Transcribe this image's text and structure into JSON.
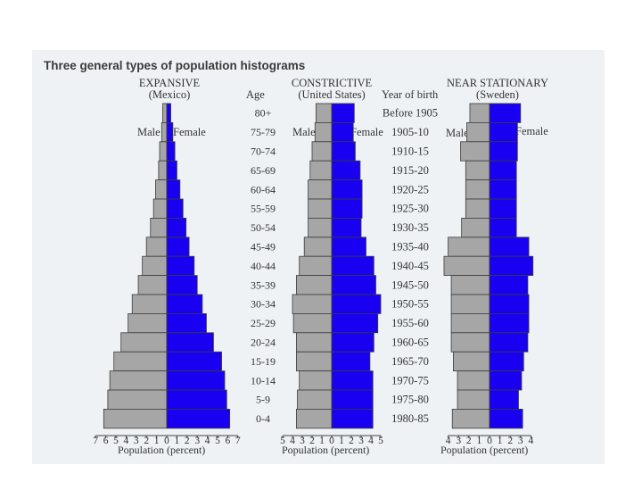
{
  "chart_data": {
    "type": "bar",
    "orientation": "horizontal-population-pyramid",
    "title": "Three general types of population histograms",
    "row_labels_header": "Age",
    "year_labels_header": "Year of birth",
    "age_groups": [
      "80+",
      "75-79",
      "70-74",
      "65-69",
      "60-64",
      "55-59",
      "50-54",
      "45-49",
      "40-44",
      "35-39",
      "30-34",
      "25-29",
      "20-24",
      "15-19",
      "10-14",
      "5-9",
      "0-4"
    ],
    "year_of_birth": [
      "Before 1905",
      "1905-10",
      "1910-15",
      "1915-20",
      "1920-25",
      "1925-30",
      "1930-35",
      "1935-40",
      "1940-45",
      "1945-50",
      "1950-55",
      "1955-60",
      "1960-65",
      "1965-70",
      "1970-75",
      "1975-80",
      "1980-85"
    ],
    "charts": [
      {
        "name": "EXPANSIVE",
        "subtitle": "(Mexico)",
        "male_label": "Male",
        "female_label": "Female",
        "xlabel": "Population (percent)",
        "xlim": 7,
        "ticks": [
          "7",
          "6",
          "5",
          "4",
          "3",
          "2",
          "1",
          "0",
          "1",
          "2",
          "3",
          "4",
          "5",
          "6",
          "7"
        ],
        "male": [
          0.4,
          0.5,
          0.7,
          0.8,
          1.1,
          1.3,
          1.6,
          2.0,
          2.4,
          2.8,
          3.4,
          3.8,
          4.5,
          5.2,
          5.6,
          5.8,
          6.2
        ],
        "female": [
          0.4,
          0.6,
          0.8,
          1.0,
          1.3,
          1.6,
          1.9,
          2.2,
          2.7,
          3.0,
          3.5,
          3.9,
          4.6,
          5.4,
          5.7,
          5.9,
          6.2
        ]
      },
      {
        "name": "CONSTRICTIVE",
        "subtitle": "(United States)",
        "male_label": "Male",
        "female_label": "Female",
        "xlabel": "Population (percent)",
        "xlim": 5,
        "ticks": [
          "5",
          "4",
          "3",
          "2",
          "1",
          "0",
          "1",
          "2",
          "3",
          "4",
          "5"
        ],
        "male": [
          1.6,
          1.7,
          2.0,
          2.2,
          2.4,
          2.4,
          2.4,
          2.8,
          3.3,
          3.6,
          4.0,
          3.9,
          3.6,
          3.6,
          3.3,
          3.5,
          3.6
        ],
        "female": [
          2.3,
          2.2,
          2.4,
          2.9,
          3.1,
          3.1,
          3.0,
          3.5,
          4.3,
          4.5,
          5.0,
          4.7,
          4.3,
          3.9,
          4.2,
          4.2,
          4.2
        ]
      },
      {
        "name": "NEAR STATIONARY",
        "subtitle": "(Sweden)",
        "male_label": "Male",
        "female_label": "Female",
        "xlabel": "Population (percent)",
        "xlim": 4,
        "ticks": [
          "4",
          "3",
          "2",
          "1",
          "0",
          "1",
          "2",
          "3",
          "4"
        ],
        "male": [
          1.9,
          2.2,
          2.8,
          2.3,
          2.3,
          2.3,
          2.7,
          4.0,
          4.4,
          3.7,
          3.7,
          3.7,
          3.7,
          3.5,
          3.1,
          3.1,
          3.6
        ],
        "female": [
          3.0,
          2.7,
          2.7,
          2.6,
          2.6,
          2.6,
          2.6,
          3.8,
          4.2,
          3.7,
          3.8,
          3.8,
          3.7,
          3.3,
          3.1,
          2.8,
          3.2
        ]
      }
    ]
  },
  "colors": {
    "male": "#a6a6a6",
    "female": "#1a00f0",
    "outline": "#3c3c3c",
    "panel": "#eef2f5"
  }
}
